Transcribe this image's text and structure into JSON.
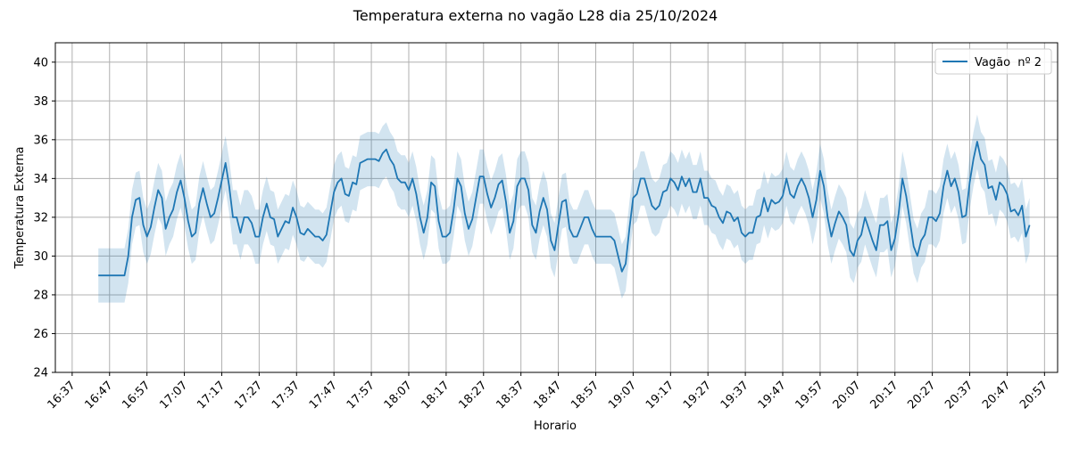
{
  "chart_data": {
    "type": "line",
    "title": "Temperatura externa no vagão L28 dia 25/10/2024",
    "xlabel": "Horario",
    "ylabel": "Temperatura Externa",
    "ylim": [
      24,
      41
    ],
    "yticks": [
      24,
      26,
      28,
      30,
      32,
      34,
      36,
      38,
      40
    ],
    "xticks": [
      "16:37",
      "16:47",
      "16:57",
      "17:07",
      "17:17",
      "17:27",
      "17:37",
      "17:47",
      "17:57",
      "18:07",
      "18:17",
      "18:27",
      "18:37",
      "18:47",
      "18:57",
      "19:07",
      "19:17",
      "19:27",
      "19:37",
      "19:47",
      "19:57",
      "20:07",
      "20:17",
      "20:27",
      "20:37",
      "20:47",
      "20:57"
    ],
    "grid": true,
    "legend_position": "top-right",
    "band_halfwidth": 1.4,
    "colors": {
      "line": "#1f77b4",
      "band": "#1f77b4"
    },
    "series": [
      {
        "name": "Vagão  nº 2",
        "points": [
          [
            "16:44",
            29.0
          ],
          [
            "16:45",
            29.0
          ],
          [
            "16:46",
            29.0
          ],
          [
            "16:47",
            29.0
          ],
          [
            "16:48",
            29.0
          ],
          [
            "16:49",
            29.0
          ],
          [
            "16:50",
            29.0
          ],
          [
            "16:51",
            29.0
          ],
          [
            "16:52",
            30.0
          ],
          [
            "16:53",
            32.0
          ],
          [
            "16:54",
            32.9
          ],
          [
            "16:55",
            33.0
          ],
          [
            "16:56",
            31.6
          ],
          [
            "16:57",
            31.0
          ],
          [
            "16:58",
            31.5
          ],
          [
            "16:59",
            32.5
          ],
          [
            "17:00",
            33.4
          ],
          [
            "17:01",
            33.0
          ],
          [
            "17:02",
            31.4
          ],
          [
            "17:03",
            32.0
          ],
          [
            "17:04",
            32.4
          ],
          [
            "17:05",
            33.3
          ],
          [
            "17:06",
            33.9
          ],
          [
            "17:07",
            33.0
          ],
          [
            "17:08",
            31.8
          ],
          [
            "17:09",
            31.0
          ],
          [
            "17:10",
            31.2
          ],
          [
            "17:11",
            32.7
          ],
          [
            "17:12",
            33.5
          ],
          [
            "17:13",
            32.7
          ],
          [
            "17:14",
            32.0
          ],
          [
            "17:15",
            32.2
          ],
          [
            "17:16",
            33.0
          ],
          [
            "17:17",
            33.9
          ],
          [
            "17:18",
            34.8
          ],
          [
            "17:19",
            33.6
          ],
          [
            "17:20",
            32.0
          ],
          [
            "17:21",
            32.0
          ],
          [
            "17:22",
            31.2
          ],
          [
            "17:23",
            32.0
          ],
          [
            "17:24",
            32.0
          ],
          [
            "17:25",
            31.7
          ],
          [
            "17:26",
            31.0
          ],
          [
            "17:27",
            31.0
          ],
          [
            "17:28",
            32.0
          ],
          [
            "17:29",
            32.7
          ],
          [
            "17:30",
            32.0
          ],
          [
            "17:31",
            31.9
          ],
          [
            "17:32",
            31.0
          ],
          [
            "17:33",
            31.4
          ],
          [
            "17:34",
            31.8
          ],
          [
            "17:35",
            31.7
          ],
          [
            "17:36",
            32.5
          ],
          [
            "17:37",
            32.0
          ],
          [
            "17:38",
            31.2
          ],
          [
            "17:39",
            31.1
          ],
          [
            "17:40",
            31.4
          ],
          [
            "17:41",
            31.2
          ],
          [
            "17:42",
            31.0
          ],
          [
            "17:43",
            31.0
          ],
          [
            "17:44",
            30.8
          ],
          [
            "17:45",
            31.1
          ],
          [
            "17:46",
            32.2
          ],
          [
            "17:47",
            33.3
          ],
          [
            "17:48",
            33.8
          ],
          [
            "17:49",
            34.0
          ],
          [
            "17:50",
            33.2
          ],
          [
            "17:51",
            33.1
          ],
          [
            "17:52",
            33.8
          ],
          [
            "17:53",
            33.7
          ],
          [
            "17:54",
            34.8
          ],
          [
            "17:55",
            34.9
          ],
          [
            "17:56",
            35.0
          ],
          [
            "17:57",
            35.0
          ],
          [
            "17:58",
            35.0
          ],
          [
            "17:59",
            34.9
          ],
          [
            "18:00",
            35.3
          ],
          [
            "18:01",
            35.5
          ],
          [
            "18:02",
            35.0
          ],
          [
            "18:03",
            34.7
          ],
          [
            "18:04",
            34.0
          ],
          [
            "18:05",
            33.8
          ],
          [
            "18:06",
            33.8
          ],
          [
            "18:07",
            33.4
          ],
          [
            "18:08",
            34.0
          ],
          [
            "18:09",
            33.2
          ],
          [
            "18:10",
            32.0
          ],
          [
            "18:11",
            31.2
          ],
          [
            "18:12",
            32.0
          ],
          [
            "18:13",
            33.8
          ],
          [
            "18:14",
            33.6
          ],
          [
            "18:15",
            31.8
          ],
          [
            "18:16",
            31.0
          ],
          [
            "18:17",
            31.0
          ],
          [
            "18:18",
            31.2
          ],
          [
            "18:19",
            32.4
          ],
          [
            "18:20",
            34.0
          ],
          [
            "18:21",
            33.6
          ],
          [
            "18:22",
            32.2
          ],
          [
            "18:23",
            31.4
          ],
          [
            "18:24",
            31.9
          ],
          [
            "18:25",
            33.0
          ],
          [
            "18:26",
            34.1
          ],
          [
            "18:27",
            34.1
          ],
          [
            "18:28",
            33.2
          ],
          [
            "18:29",
            32.5
          ],
          [
            "18:30",
            33.0
          ],
          [
            "18:31",
            33.7
          ],
          [
            "18:32",
            33.9
          ],
          [
            "18:33",
            32.8
          ],
          [
            "18:34",
            31.2
          ],
          [
            "18:35",
            31.8
          ],
          [
            "18:36",
            33.6
          ],
          [
            "18:37",
            34.0
          ],
          [
            "18:38",
            34.0
          ],
          [
            "18:39",
            33.4
          ],
          [
            "18:40",
            31.6
          ],
          [
            "18:41",
            31.2
          ],
          [
            "18:42",
            32.3
          ],
          [
            "18:43",
            33.0
          ],
          [
            "18:44",
            32.4
          ],
          [
            "18:45",
            30.8
          ],
          [
            "18:46",
            30.3
          ],
          [
            "18:47",
            31.6
          ],
          [
            "18:48",
            32.8
          ],
          [
            "18:49",
            32.9
          ],
          [
            "18:50",
            31.4
          ],
          [
            "18:51",
            31.0
          ],
          [
            "18:52",
            31.0
          ],
          [
            "18:53",
            31.5
          ],
          [
            "18:54",
            32.0
          ],
          [
            "18:55",
            32.0
          ],
          [
            "18:56",
            31.4
          ],
          [
            "18:57",
            31.0
          ],
          [
            "18:58",
            31.0
          ],
          [
            "18:59",
            31.0
          ],
          [
            "19:00",
            31.0
          ],
          [
            "19:01",
            31.0
          ],
          [
            "19:02",
            30.8
          ],
          [
            "19:03",
            30.0
          ],
          [
            "19:04",
            29.2
          ],
          [
            "19:05",
            29.6
          ],
          [
            "19:06",
            31.4
          ],
          [
            "19:07",
            33.0
          ],
          [
            "19:08",
            33.2
          ],
          [
            "19:09",
            34.0
          ],
          [
            "19:10",
            34.0
          ],
          [
            "19:11",
            33.3
          ],
          [
            "19:12",
            32.6
          ],
          [
            "19:13",
            32.4
          ],
          [
            "19:14",
            32.6
          ],
          [
            "19:15",
            33.3
          ],
          [
            "19:16",
            33.4
          ],
          [
            "19:17",
            34.0
          ],
          [
            "19:18",
            33.8
          ],
          [
            "19:19",
            33.4
          ],
          [
            "19:20",
            34.1
          ],
          [
            "19:21",
            33.6
          ],
          [
            "19:22",
            34.0
          ],
          [
            "19:23",
            33.3
          ],
          [
            "19:24",
            33.3
          ],
          [
            "19:25",
            34.0
          ],
          [
            "19:26",
            33.0
          ],
          [
            "19:27",
            33.0
          ],
          [
            "19:28",
            32.6
          ],
          [
            "19:29",
            32.5
          ],
          [
            "19:30",
            32.0
          ],
          [
            "19:31",
            31.7
          ],
          [
            "19:32",
            32.3
          ],
          [
            "19:33",
            32.2
          ],
          [
            "19:34",
            31.8
          ],
          [
            "19:35",
            32.0
          ],
          [
            "19:36",
            31.2
          ],
          [
            "19:37",
            31.0
          ],
          [
            "19:38",
            31.2
          ],
          [
            "19:39",
            31.2
          ],
          [
            "19:40",
            32.0
          ],
          [
            "19:41",
            32.1
          ],
          [
            "19:42",
            33.0
          ],
          [
            "19:43",
            32.3
          ],
          [
            "19:44",
            32.9
          ],
          [
            "19:45",
            32.7
          ],
          [
            "19:46",
            32.8
          ],
          [
            "19:47",
            33.1
          ],
          [
            "19:48",
            34.0
          ],
          [
            "19:49",
            33.2
          ],
          [
            "19:50",
            33.0
          ],
          [
            "19:51",
            33.6
          ],
          [
            "19:52",
            34.0
          ],
          [
            "19:53",
            33.6
          ],
          [
            "19:54",
            33.0
          ],
          [
            "19:55",
            32.0
          ],
          [
            "19:56",
            32.9
          ],
          [
            "19:57",
            34.4
          ],
          [
            "19:58",
            33.6
          ],
          [
            "19:59",
            32.0
          ],
          [
            "20:00",
            31.0
          ],
          [
            "20:01",
            31.7
          ],
          [
            "20:02",
            32.3
          ],
          [
            "20:03",
            32.0
          ],
          [
            "20:04",
            31.6
          ],
          [
            "20:05",
            30.3
          ],
          [
            "20:06",
            30.0
          ],
          [
            "20:07",
            30.8
          ],
          [
            "20:08",
            31.1
          ],
          [
            "20:09",
            32.0
          ],
          [
            "20:10",
            31.4
          ],
          [
            "20:11",
            30.8
          ],
          [
            "20:12",
            30.3
          ],
          [
            "20:13",
            31.6
          ],
          [
            "20:14",
            31.6
          ],
          [
            "20:15",
            31.8
          ],
          [
            "20:16",
            30.3
          ],
          [
            "20:17",
            30.9
          ],
          [
            "20:18",
            32.2
          ],
          [
            "20:19",
            34.0
          ],
          [
            "20:20",
            33.1
          ],
          [
            "20:21",
            31.8
          ],
          [
            "20:22",
            30.5
          ],
          [
            "20:23",
            30.0
          ],
          [
            "20:24",
            30.8
          ],
          [
            "20:25",
            31.1
          ],
          [
            "20:26",
            32.0
          ],
          [
            "20:27",
            32.0
          ],
          [
            "20:28",
            31.8
          ],
          [
            "20:29",
            32.2
          ],
          [
            "20:30",
            33.6
          ],
          [
            "20:31",
            34.4
          ],
          [
            "20:32",
            33.6
          ],
          [
            "20:33",
            34.0
          ],
          [
            "20:34",
            33.3
          ],
          [
            "20:35",
            32.0
          ],
          [
            "20:36",
            32.1
          ],
          [
            "20:37",
            33.8
          ],
          [
            "20:38",
            35.0
          ],
          [
            "20:39",
            35.9
          ],
          [
            "20:40",
            35.0
          ],
          [
            "20:41",
            34.7
          ],
          [
            "20:42",
            33.5
          ],
          [
            "20:43",
            33.6
          ],
          [
            "20:44",
            32.9
          ],
          [
            "20:45",
            33.8
          ],
          [
            "20:46",
            33.6
          ],
          [
            "20:47",
            33.2
          ],
          [
            "20:48",
            32.3
          ],
          [
            "20:49",
            32.4
          ],
          [
            "20:50",
            32.1
          ],
          [
            "20:51",
            32.6
          ],
          [
            "20:52",
            31.0
          ],
          [
            "20:53",
            31.6
          ]
        ]
      }
    ]
  }
}
